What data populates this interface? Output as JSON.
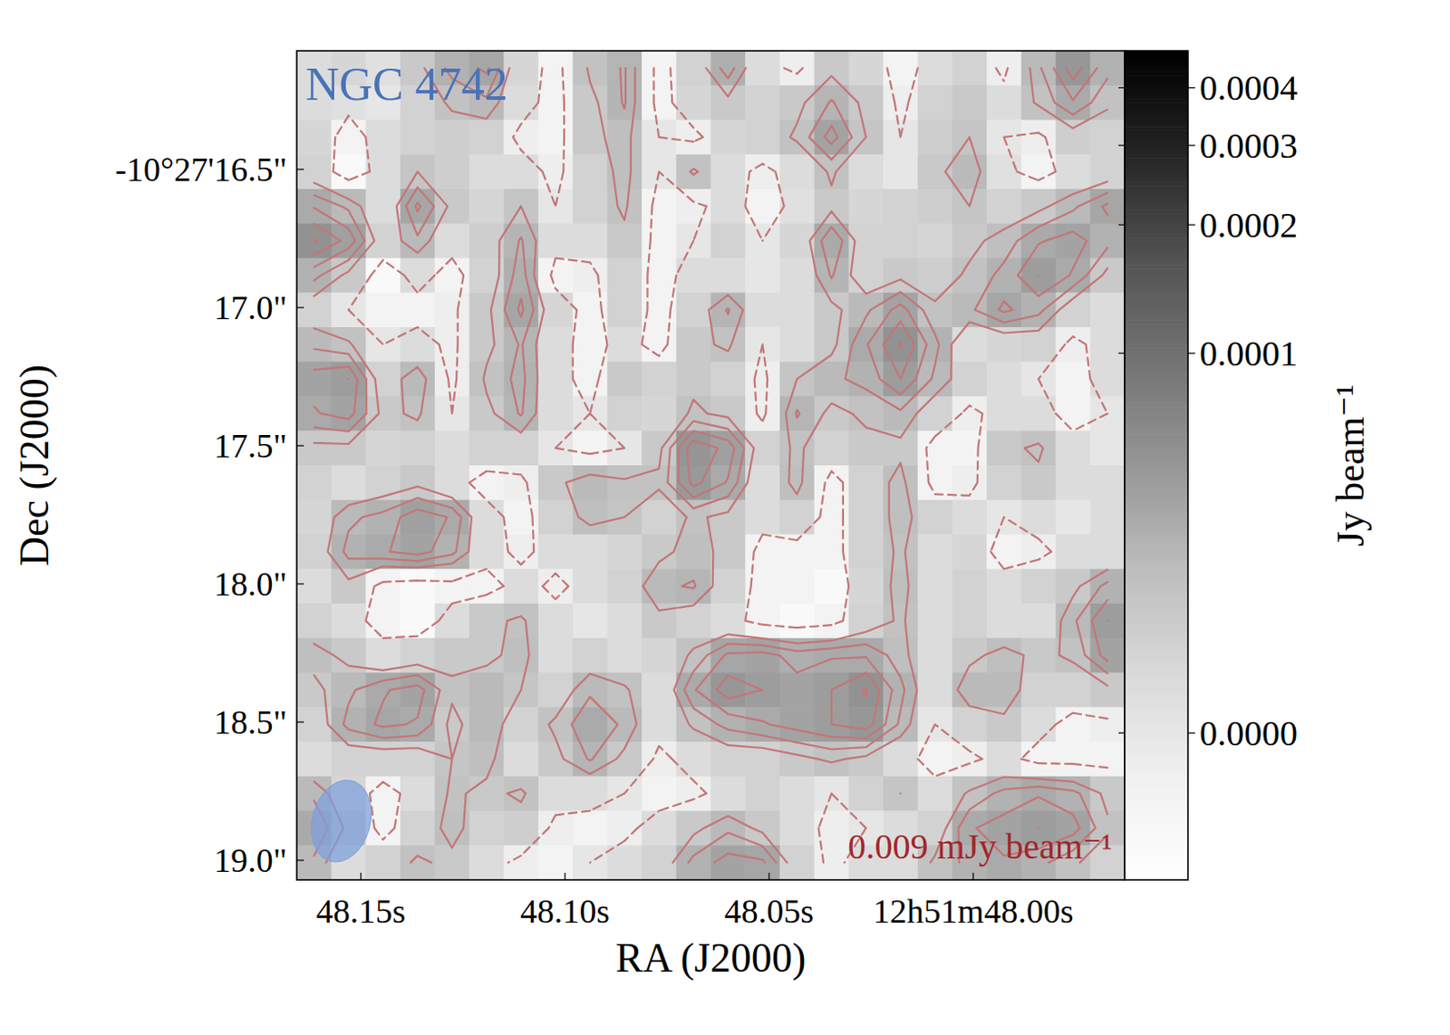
{
  "chart_data": {
    "type": "contour",
    "title": "NGC 4742",
    "x_label": "RA (J2000)",
    "y_label": "Dec (J2000)",
    "xlim": [
      48.1657,
      47.9629
    ],
    "xticks": [
      {
        "value": 48.15,
        "label": "48.15s"
      },
      {
        "value": 48.1,
        "label": "48.10s"
      },
      {
        "value": 48.05,
        "label": "48.05s"
      },
      {
        "value": 48.0,
        "label": "12h51m48.00s"
      }
    ],
    "ylim": [
      19.071,
      16.071
    ],
    "yticks": [
      {
        "value": 16.5,
        "label": "-10°27'16.5\""
      },
      {
        "value": 17.0,
        "label": "17.0\""
      },
      {
        "value": 17.5,
        "label": "17.5\""
      },
      {
        "value": 18.0,
        "label": "18.0\""
      },
      {
        "value": 18.5,
        "label": "18.5\""
      },
      {
        "value": 19.0,
        "label": "19.0\""
      }
    ],
    "cells": [
      [
        5e-06,
        8e-06,
        3e-06,
        1.5e-05,
        3e-05,
        3.8e-05,
        8e-06,
        -5e-06,
        2e-05,
        2.8e-05,
        -5e-06,
        1e-05,
        3.2e-05,
        5e-06,
        -3e-06,
        1.5e-05,
        8e-06,
        -5e-06,
        5e-06,
        1e-05,
        -3e-06,
        2.5e-05,
        5e-05,
        3e-05
      ],
      [
        5e-06,
        3e-06,
        0.0,
        1e-05,
        2e-05,
        2.5e-05,
        5e-06,
        -5e-06,
        1.5e-05,
        2.8e-05,
        -5e-06,
        8e-06,
        1.5e-05,
        1e-05,
        1.5e-05,
        2.8e-05,
        1.5e-05,
        -3e-06,
        1e-05,
        1.5e-05,
        5e-06,
        2e-05,
        3.5e-05,
        2e-05
      ],
      [
        8e-06,
        -5e-06,
        5e-06,
        1e-05,
        1.2e-05,
        1e-05,
        -3e-06,
        -5e-06,
        1.5e-05,
        2.2e-05,
        0.0,
        -3e-06,
        8e-06,
        1e-05,
        2e-05,
        4e-05,
        1.8e-05,
        0.0,
        1.2e-05,
        1.8e-05,
        0.0,
        -3e-06,
        1.2e-05,
        1e-05
      ],
      [
        1e-05,
        -8e-06,
        5e-06,
        1.8e-05,
        1.2e-05,
        5e-06,
        5e-06,
        -3e-06,
        1e-05,
        2.2e-05,
        0.0,
        2e-05,
        5e-06,
        -3e-06,
        5e-06,
        2e-05,
        5e-06,
        0.0,
        1.5e-05,
        2.5e-05,
        3e-06,
        -5e-06,
        5e-06,
        1e-05
      ],
      [
        3.5e-05,
        2.5e-05,
        5e-06,
        3.8e-05,
        1.5e-05,
        8e-06,
        1.8e-05,
        0.0,
        1e-05,
        2e-05,
        -5e-06,
        -3e-06,
        5e-06,
        -5e-06,
        3e-06,
        1.5e-05,
        8e-06,
        1e-05,
        1.2e-05,
        1.8e-05,
        1e-05,
        1.5e-05,
        2.5e-05,
        3.8e-05
      ],
      [
        5.5e-05,
        4.2e-05,
        1e-05,
        2.5e-05,
        5e-06,
        1.2e-05,
        2.8e-05,
        5e-06,
        5e-06,
        1.5e-05,
        -5e-06,
        0.0,
        1e-05,
        0.0,
        8e-06,
        3.5e-05,
        1e-05,
        1e-05,
        8e-06,
        1.5e-05,
        2.2e-05,
        3.5e-05,
        4e-05,
        3e-05
      ],
      [
        3e-05,
        1.5e-05,
        -8e-06,
        5e-06,
        -5e-06,
        1e-05,
        3.2e-05,
        -5e-06,
        -3e-06,
        1e-05,
        -5e-06,
        5e-06,
        5e-06,
        0.0,
        5e-06,
        2.8e-05,
        1e-05,
        1.5e-05,
        1.2e-05,
        2e-05,
        3e-05,
        4.5e-05,
        3.5e-05,
        1.5e-05
      ],
      [
        1e-05,
        0.0,
        -5e-06,
        -5e-06,
        -3e-06,
        1.5e-05,
        3.8e-05,
        8e-06,
        -5e-06,
        1e-05,
        -5e-06,
        1e-05,
        2.8e-05,
        5e-06,
        5e-06,
        1.5e-05,
        2.5e-05,
        4e-05,
        2e-05,
        2.5e-05,
        3.8e-05,
        3e-05,
        1e-05,
        5e-06
      ],
      [
        2.5e-05,
        2e-05,
        0.0,
        5e-06,
        -3e-06,
        1.5e-05,
        2.8e-05,
        5e-06,
        -5e-06,
        5e-06,
        -5e-06,
        1.5e-05,
        2e-05,
        0.0,
        5e-06,
        1.5e-05,
        3.5e-05,
        5.5e-05,
        3e-05,
        5e-06,
        8e-06,
        1e-05,
        -3e-06,
        5e-06
      ],
      [
        4e-05,
        4.5e-05,
        1e-05,
        2.5e-05,
        -3e-06,
        2e-05,
        3e-05,
        5e-06,
        -5e-06,
        1.5e-05,
        1e-05,
        1.5e-05,
        1e-05,
        -3e-06,
        1.8e-05,
        2.5e-05,
        3e-05,
        4.5e-05,
        2.5e-05,
        1e-05,
        5e-06,
        0.0,
        -5e-06,
        5e-06
      ],
      [
        3.5e-05,
        4e-05,
        1.5e-05,
        2e-05,
        0.0,
        1.5e-05,
        2.8e-05,
        5e-06,
        0.0,
        1e-05,
        8e-06,
        2e-05,
        1.5e-05,
        -3e-06,
        2.8e-05,
        1.5e-05,
        2e-05,
        2.5e-05,
        1e-05,
        -3e-06,
        5e-06,
        5e-06,
        -5e-06,
        0.0
      ],
      [
        1.5e-05,
        1.5e-05,
        8e-06,
        1e-05,
        5e-06,
        1e-05,
        1e-05,
        0.0,
        -5e-06,
        0.0,
        1.5e-05,
        5.2e-05,
        4.2e-05,
        1e-05,
        2e-05,
        1e-05,
        1.5e-05,
        1.5e-05,
        -5e-06,
        -5e-06,
        1.5e-05,
        2e-05,
        5e-06,
        0.0
      ],
      [
        1e-05,
        5e-06,
        1e-05,
        1.5e-05,
        5e-06,
        -5e-06,
        -3e-06,
        1.5e-05,
        2.5e-05,
        2e-05,
        2e-05,
        4.8e-05,
        3.5e-05,
        5e-06,
        2.2e-05,
        -5e-06,
        1e-05,
        2.2e-05,
        -5e-06,
        -3e-06,
        1e-05,
        1.5e-05,
        5e-06,
        5e-06
      ],
      [
        8e-06,
        2.5e-05,
        3e-05,
        4.2e-05,
        3.5e-05,
        5e-06,
        -5e-06,
        1e-05,
        2.2e-05,
        1.8e-05,
        1e-05,
        2e-05,
        1.5e-05,
        5e-06,
        1e-05,
        -5e-06,
        1e-05,
        2.2e-05,
        1e-05,
        5e-06,
        0.0,
        5e-06,
        0.0,
        5e-06
      ],
      [
        1e-05,
        3e-05,
        3.5e-05,
        4e-05,
        3e-05,
        5e-06,
        -3e-06,
        5e-06,
        5e-06,
        8e-06,
        1.5e-05,
        2.2e-05,
        1.5e-05,
        -5e-06,
        -5e-06,
        -5e-06,
        1e-05,
        2e-05,
        5e-06,
        8e-06,
        -5e-06,
        -3e-06,
        5e-06,
        5e-06
      ],
      [
        5e-06,
        1.5e-05,
        -5e-06,
        -8e-06,
        -5e-06,
        -5e-06,
        5e-06,
        -3e-06,
        5e-06,
        1e-05,
        2.5e-05,
        2.8e-05,
        1e-05,
        -5e-06,
        -5e-06,
        -8e-06,
        8e-06,
        2.2e-05,
        5e-06,
        1e-05,
        5e-06,
        1e-05,
        1.5e-05,
        3e-05
      ],
      [
        1e-05,
        5e-06,
        -5e-06,
        -8e-06,
        5e-06,
        1.5e-05,
        2e-05,
        5e-06,
        0.0,
        5e-06,
        1.5e-05,
        1e-05,
        5e-06,
        -5e-06,
        -8e-06,
        -5e-06,
        1e-05,
        2e-05,
        5e-06,
        1e-05,
        5e-06,
        5e-06,
        2.5e-05,
        4.5e-05
      ],
      [
        2.2e-05,
        1.5e-05,
        5e-06,
        1e-05,
        1.5e-05,
        1.5e-05,
        2.2e-05,
        5e-06,
        1e-05,
        5e-06,
        8e-06,
        2e-05,
        3.8e-05,
        4e-05,
        3.2e-05,
        3.5e-05,
        3.5e-05,
        2.2e-05,
        5e-06,
        1.5e-05,
        2.2e-05,
        1.5e-05,
        2e-05,
        4e-05
      ],
      [
        1.5e-05,
        2.5e-05,
        3.5e-05,
        4e-05,
        2e-05,
        2.5e-05,
        1.8e-05,
        1e-05,
        2.5e-05,
        2e-05,
        5e-06,
        3.5e-05,
        5e-05,
        4.5e-05,
        4e-05,
        4.5e-05,
        5.5e-05,
        3e-05,
        5e-06,
        2.5e-05,
        2.5e-05,
        1e-05,
        1e-05,
        1.5e-05
      ],
      [
        1e-05,
        3e-05,
        3.8e-05,
        3.5e-05,
        1.5e-05,
        2.5e-05,
        1e-05,
        2e-05,
        3.5e-05,
        2.5e-05,
        5e-06,
        2e-05,
        3e-05,
        3.5e-05,
        4e-05,
        4.5e-05,
        5e-05,
        2.5e-05,
        0.0,
        1e-05,
        1.5e-05,
        5e-06,
        -5e-06,
        -3e-06
      ],
      [
        5e-06,
        1e-05,
        1e-05,
        1e-05,
        1.8e-05,
        2.2e-05,
        5e-06,
        1.5e-05,
        2.8e-05,
        1.5e-05,
        -3e-06,
        5e-06,
        1e-05,
        1e-05,
        1.5e-05,
        2e-05,
        1.5e-05,
        5e-06,
        -5e-06,
        -3e-06,
        5e-06,
        -5e-06,
        -5e-06,
        -5e-06
      ],
      [
        2.5e-05,
        8e-06,
        -5e-06,
        5e-06,
        2e-05,
        1.5e-05,
        2e-05,
        5e-06,
        5e-06,
        0.0,
        -5e-06,
        -3e-06,
        5e-06,
        1e-05,
        5e-06,
        0.0,
        1e-05,
        1.8e-05,
        5e-06,
        2e-05,
        3e-05,
        3.5e-05,
        3e-05,
        1.5e-05
      ],
      [
        3.5e-05,
        1.5e-05,
        -5e-06,
        1e-05,
        2.2e-05,
        1e-05,
        1.2e-05,
        -3e-06,
        -5e-06,
        -3e-06,
        5e-06,
        1.5e-05,
        2.5e-05,
        1.5e-05,
        5e-06,
        -3e-06,
        0.0,
        5e-06,
        1e-05,
        3.5e-05,
        4e-05,
        4.5e-05,
        4e-05,
        2e-05
      ],
      [
        2.5e-05,
        5e-06,
        1e-05,
        2e-05,
        1.5e-05,
        5e-06,
        -3e-06,
        -5e-06,
        0.0,
        5e-06,
        1e-05,
        3e-05,
        4e-05,
        3.8e-05,
        1e-05,
        -3e-06,
        5e-06,
        5e-06,
        2e-05,
        3e-05,
        3.5e-05,
        3e-05,
        2e-05,
        1e-05
      ]
    ],
    "colorbar_range": [
      -1e-05,
      0.00048
    ],
    "colorbar_ticks": [
      {
        "value": 0,
        "label": "0.0000"
      },
      0.0001,
      0.0002,
      0.0003,
      0.0004
    ],
    "colorbar_label": "Jy beam⁻¹",
    "contours": [
      {
        "level": 0,
        "line_style": "dashed"
      },
      {
        "level": 1.8e-05,
        "line_style": "solid"
      },
      {
        "level": 2.7e-05,
        "line_style": "solid"
      },
      {
        "level": 3.6e-05,
        "line_style": "solid"
      },
      {
        "level": 4.5e-05,
        "line_style": "solid"
      },
      {
        "level": 5.4e-05,
        "line_style": "solid"
      }
    ],
    "color": "#c47676",
    "annotation": "0.009 mJy beam⁻¹",
    "beam": {
      "major_arcsec": 0.3,
      "minor_arcsec": 0.21,
      "pa_deg": -15
    }
  }
}
